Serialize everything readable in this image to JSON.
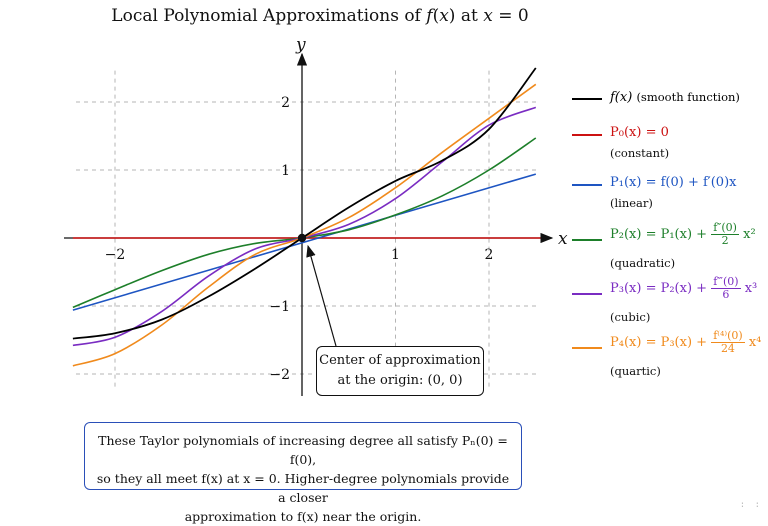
{
  "chart_data": {
    "type": "line",
    "title": "Local Polynomial Approximations of f(x) at x = 0",
    "xlabel": "x",
    "ylabel": "y",
    "xlim": [
      -2.45,
      2.55
    ],
    "ylim": [
      -2.3,
      2.55
    ],
    "x_ticks": [
      -2,
      1,
      2
    ],
    "x_tick_labels": [
      "−2",
      "1",
      "2"
    ],
    "y_ticks": [
      -2,
      -1,
      1,
      2
    ],
    "y_tick_labels": [
      "−2",
      "−1",
      "1",
      "2"
    ],
    "grid": true,
    "legend_position": "right",
    "series": [
      {
        "name": "f(x) (smooth function)",
        "color": "#000000",
        "x": [
          -2.45,
          -2.0,
          -1.5,
          -1.0,
          -0.5,
          0,
          0.5,
          1.0,
          1.5,
          2.0,
          2.5
        ],
        "y": [
          -1.48,
          -1.4,
          -1.2,
          -0.86,
          -0.45,
          0,
          0.45,
          0.84,
          1.14,
          1.6,
          2.5
        ]
      },
      {
        "name": "P0(x) = 0",
        "color": "#cc1111",
        "x": [
          -2.45,
          2.55
        ],
        "y": [
          0,
          0
        ]
      },
      {
        "name": "P1(x) = f(0) + f′(0)x",
        "color": "#1e55c2",
        "x": [
          -2.45,
          2.5
        ],
        "y": [
          -1.06,
          0.94
        ]
      },
      {
        "name": "P2(x) = P1(x) + f″(0)/2 x²",
        "color": "#1d7f2a",
        "x": [
          -2.45,
          -2.0,
          -1.5,
          -1.0,
          -0.5,
          0,
          0.5,
          1.0,
          1.5,
          2.0,
          2.5
        ],
        "y": [
          -1.02,
          -0.76,
          -0.48,
          -0.24,
          -0.08,
          0,
          0.12,
          0.34,
          0.62,
          1.0,
          1.47
        ]
      },
      {
        "name": "P3(x) = P2(x) + f‴(0)/6 x³",
        "color": "#7a2cc2",
        "x": [
          -2.45,
          -2.0,
          -1.5,
          -1.0,
          -0.5,
          0,
          0.5,
          1.0,
          1.5,
          2.0,
          2.5
        ],
        "y": [
          -1.58,
          -1.46,
          -1.08,
          -0.56,
          -0.16,
          0,
          0.2,
          0.58,
          1.12,
          1.66,
          1.92
        ]
      },
      {
        "name": "P4(x) = P3(x) + f⁽⁴⁾(0)/24 x⁴",
        "color": "#f08a1c",
        "x": [
          -2.45,
          -2.0,
          -1.5,
          -1.0,
          -0.5,
          0,
          0.5,
          1.0,
          1.5,
          2.0,
          2.5
        ],
        "y": [
          -1.88,
          -1.7,
          -1.28,
          -0.72,
          -0.24,
          0,
          0.3,
          0.74,
          1.26,
          1.76,
          2.26
        ]
      }
    ],
    "highlight_point": {
      "x": 0,
      "y": 0
    }
  },
  "title": {
    "pre": "Local Polynomial Approximations of ",
    "f": "f",
    "mid": "(",
    "x1": "x",
    "mid2": ") at ",
    "x2": "x",
    "post": " = 0"
  },
  "axes": {
    "x_label": "x",
    "y_label": "y"
  },
  "callout": {
    "line1": "Center of approximation",
    "line2": "at the origin: (0, 0)"
  },
  "legend": {
    "f": {
      "formula": "f(x)",
      "sub": "(smooth function)"
    },
    "p0": {
      "formula": "P₀(x) = 0",
      "sub": "(constant)"
    },
    "p1": {
      "formula": "P₁(x) = f(0) + f′(0)x",
      "sub": "(linear)"
    },
    "p2": {
      "lhs": "P₂(x) = P₁(x) +",
      "num": "f″(0)",
      "den": "2",
      "tail": "x²",
      "sub": "(quadratic)"
    },
    "p3": {
      "lhs": "P₃(x) = P₂(x) +",
      "num": "f‴(0)",
      "den": "6",
      "tail": "x³",
      "sub": "(cubic)"
    },
    "p4": {
      "lhs": "P₄(x) = P₃(x) +",
      "num": "f⁽⁴⁾(0)",
      "den": "24",
      "tail": "x⁴",
      "sub": "(quartic)"
    }
  },
  "note": {
    "line1": "These Taylor polynomials of increasing degree all satisfy Pₙ(0) = f(0),",
    "line2": "so they all meet f(x) at x = 0. Higher-degree polynomials provide a closer",
    "line3": "approximation to f(x) near the origin."
  },
  "corner_mark": ": :"
}
